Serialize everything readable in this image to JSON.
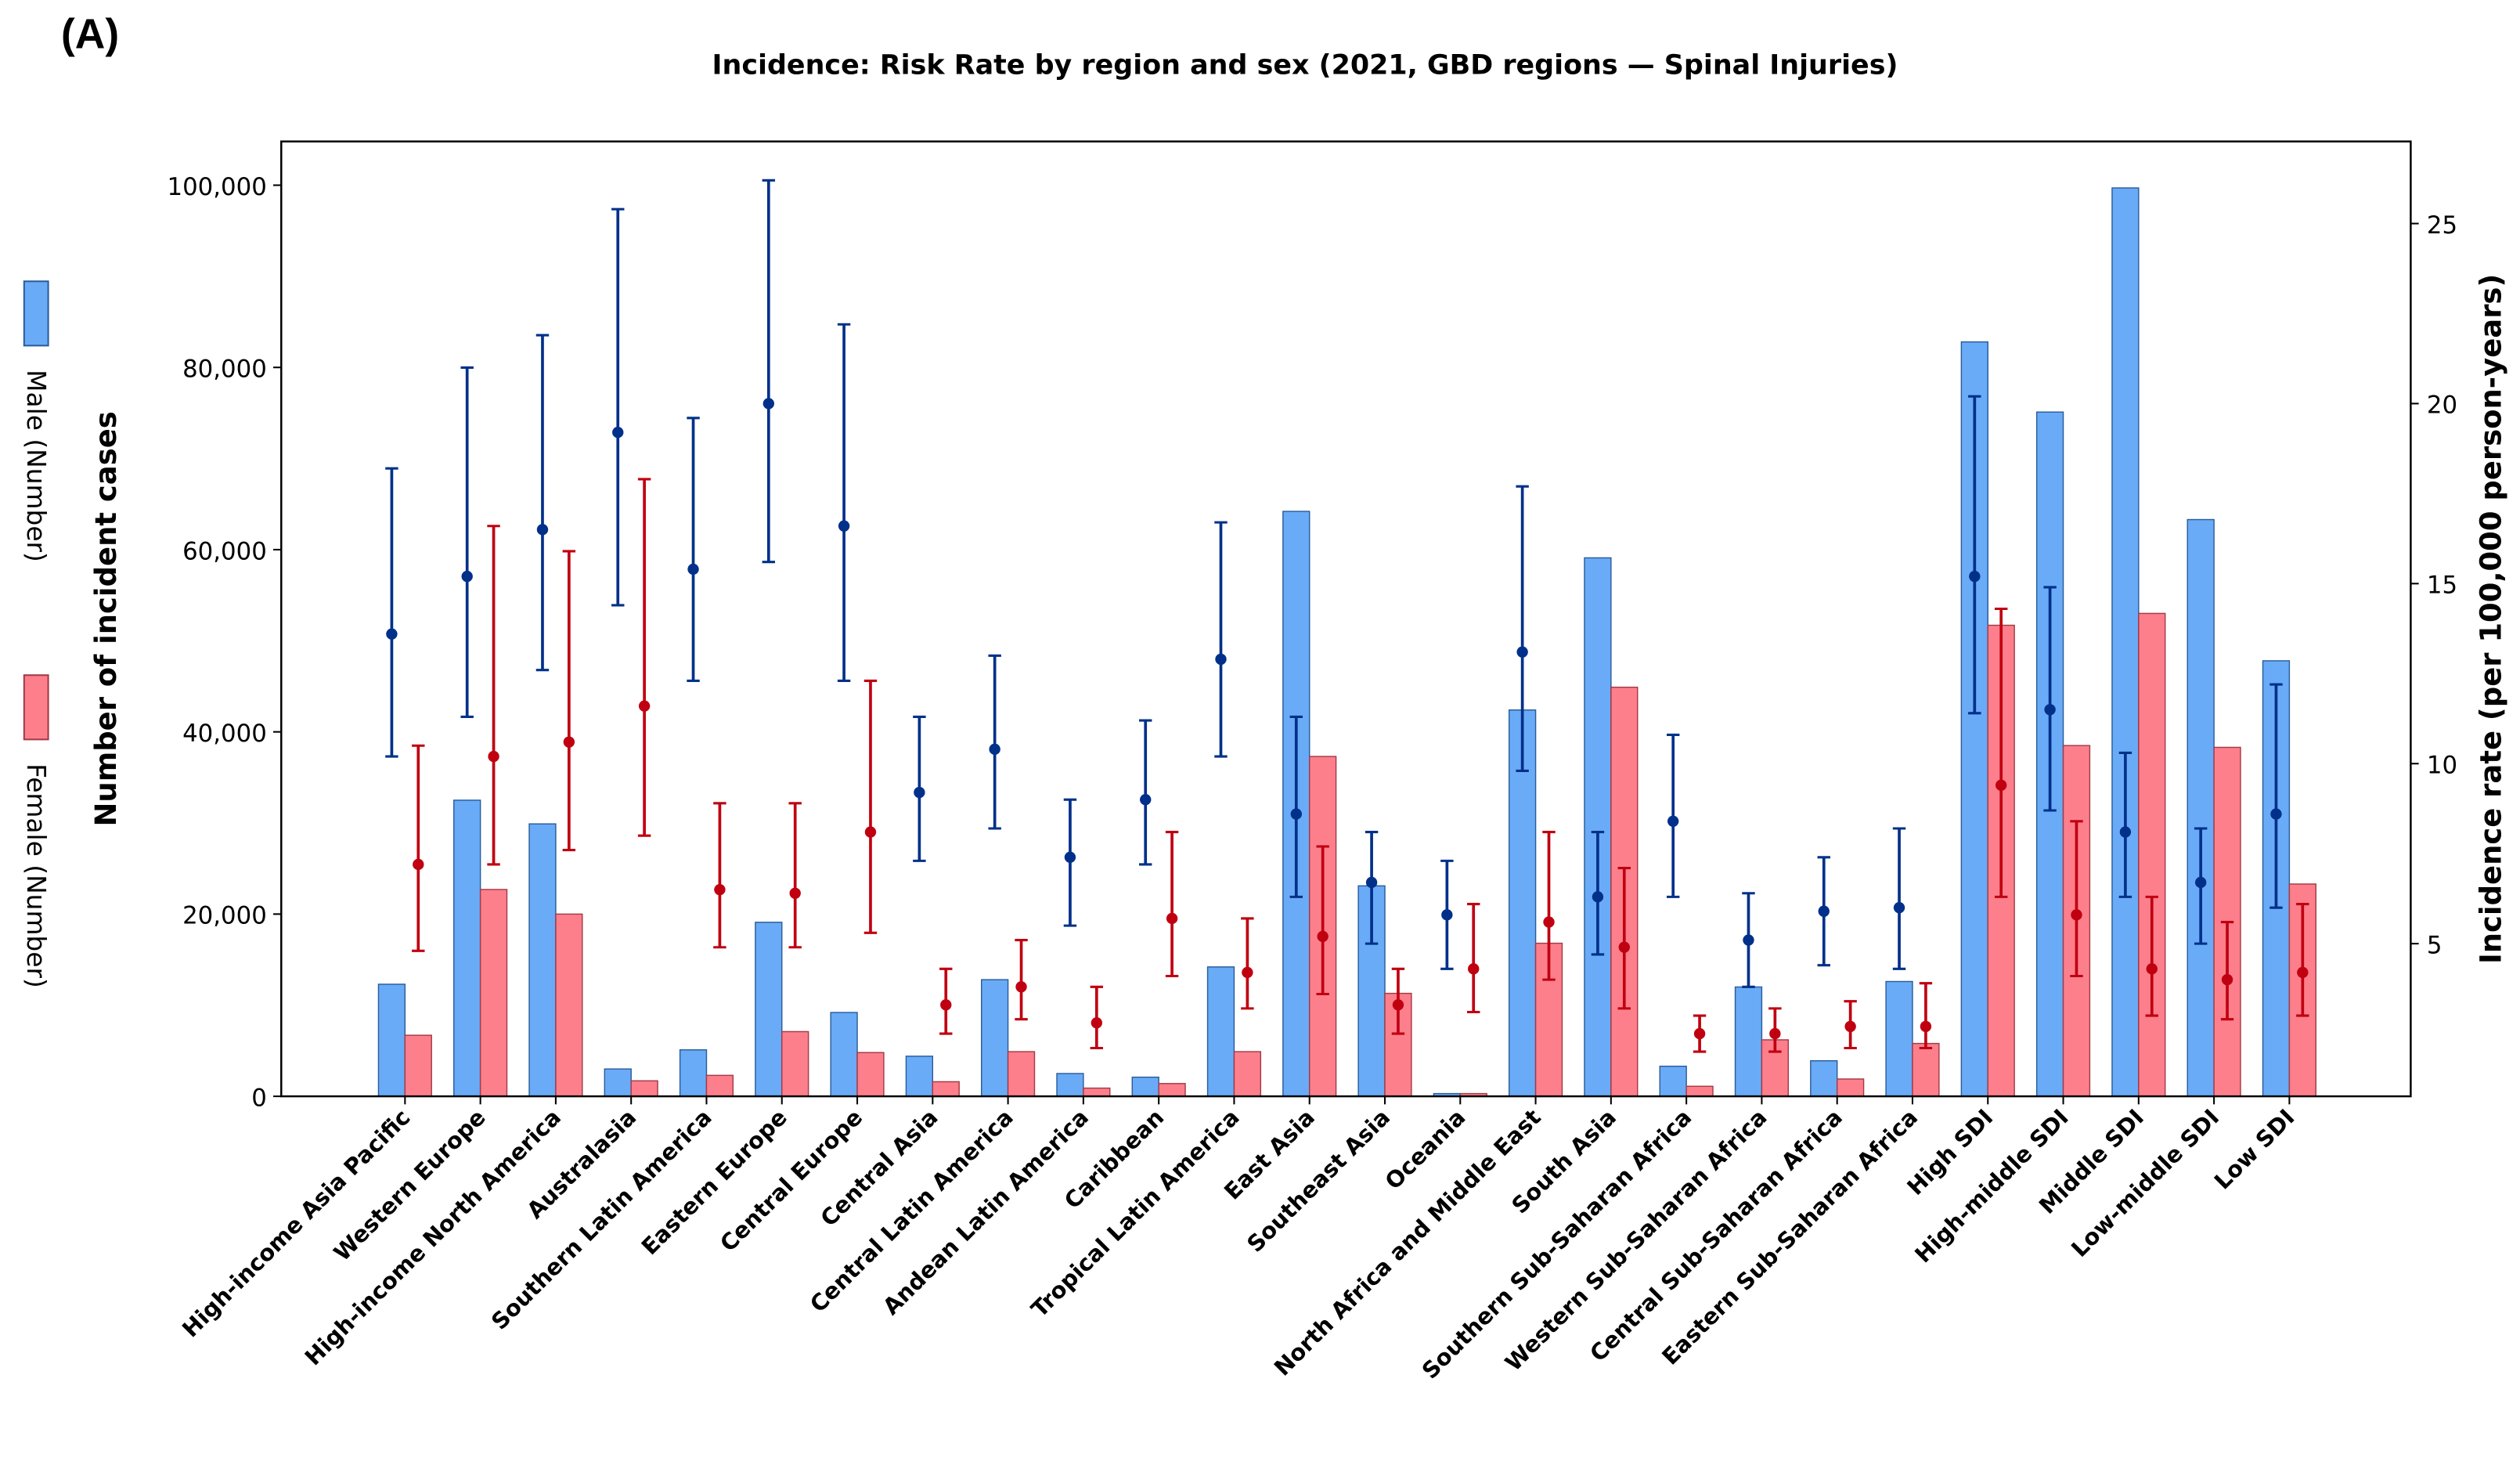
{
  "panel_label": "(A)",
  "chart_data": {
    "type": "bar",
    "title": "Incidence: Risk Rate by region and sex (2021, GBD regions — Spinal Injuries)",
    "ylabel": "Number of incident cases",
    "y2label": "Incidence rate (per 100,000 person-years)",
    "categories": [
      "High-income Asia Pacific",
      "Western Europe",
      "High-income North America",
      "Australasia",
      "Southern Latin America",
      "Eastern Europe",
      "Central Europe",
      "Central Asia",
      "Central Latin America",
      "Andean Latin America",
      "Caribbean",
      "Tropical Latin America",
      "East Asia",
      "Southeast Asia",
      "Oceania",
      "North Africa and Middle East",
      "South Asia",
      "Southern Sub-Saharan Africa",
      "Western Sub-Saharan Africa",
      "Central Sub-Saharan Africa",
      "Eastern Sub-Saharan Africa",
      "High SDI",
      "High-middle SDI",
      "Middle SDI",
      "Low-middle SDI",
      "Low SDI"
    ],
    "series": [
      {
        "name": "Male (Number)",
        "color": "#6aabf7",
        "values": [
          12300,
          32500,
          29900,
          3000,
          5100,
          19100,
          9200,
          4400,
          12800,
          2500,
          2100,
          14200,
          64200,
          23100,
          300,
          42400,
          59100,
          3300,
          12000,
          3900,
          12600,
          82800,
          75100,
          99700,
          63300,
          47800
        ]
      },
      {
        "name": "Female (Number)",
        "color": "#fd7f8c",
        "values": [
          6700,
          22700,
          20000,
          1700,
          2300,
          7100,
          4800,
          1600,
          4900,
          900,
          1400,
          4900,
          37300,
          11300,
          300,
          16800,
          44900,
          1100,
          6200,
          1900,
          5800,
          51700,
          38500,
          53000,
          38300,
          23300
        ]
      }
    ],
    "rates": [
      {
        "color": "#00308a",
        "axis": "y2",
        "values": [
          13.6,
          15.2,
          16.5,
          19.2,
          15.4,
          20.0,
          16.6,
          9.2,
          10.4,
          7.4,
          9.0,
          12.9,
          8.6,
          6.7,
          5.8,
          13.1,
          6.3,
          8.4,
          5.1,
          5.9,
          6.0,
          15.2,
          11.5,
          8.1,
          6.7,
          8.6
        ],
        "lower": [
          10.2,
          11.3,
          12.6,
          14.4,
          12.3,
          15.6,
          12.3,
          7.3,
          8.2,
          5.5,
          7.2,
          10.2,
          6.3,
          5.0,
          4.3,
          9.8,
          4.7,
          6.3,
          3.8,
          4.4,
          4.3,
          11.4,
          8.7,
          6.3,
          5.0,
          6.0
        ],
        "upper": [
          18.2,
          21.0,
          21.9,
          25.4,
          19.6,
          26.2,
          22.2,
          11.3,
          13.0,
          9.0,
          11.2,
          16.7,
          11.3,
          8.1,
          7.3,
          17.7,
          8.1,
          10.8,
          6.4,
          7.4,
          8.2,
          20.2,
          14.9,
          10.3,
          8.2,
          12.2
        ]
      },
      {
        "color": "#c00010",
        "axis": "y2",
        "values": [
          7.2,
          10.2,
          10.6,
          11.6,
          6.5,
          6.4,
          8.1,
          3.3,
          3.8,
          2.8,
          5.7,
          4.2,
          5.2,
          3.3,
          4.3,
          5.6,
          4.9,
          2.5,
          2.5,
          2.7,
          2.7,
          9.4,
          5.8,
          4.3,
          4.0,
          4.2
        ],
        "lower": [
          4.8,
          7.2,
          7.6,
          8.0,
          4.9,
          4.9,
          5.3,
          2.5,
          2.9,
          2.1,
          4.1,
          3.2,
          3.6,
          2.5,
          3.1,
          4.0,
          3.2,
          2.0,
          2.0,
          2.1,
          2.1,
          6.3,
          4.1,
          3.0,
          2.9,
          3.0
        ],
        "upper": [
          10.5,
          16.6,
          15.9,
          17.9,
          8.9,
          8.9,
          12.3,
          4.3,
          5.1,
          3.8,
          8.1,
          5.7,
          7.7,
          4.3,
          6.1,
          8.1,
          7.1,
          3.0,
          3.2,
          3.4,
          3.9,
          14.3,
          8.4,
          6.3,
          5.6,
          6.1
        ]
      }
    ],
    "ylim": [
      0,
      104800
    ],
    "yticks": [
      0,
      {
        "value": 20000,
        "label": "20,000"
      },
      {
        "value": 40000,
        "label": "40,000"
      },
      {
        "value": 60000,
        "label": "60,000"
      },
      {
        "value": 80000,
        "label": "80,000"
      },
      {
        "value": 100000,
        "label": "100,000"
      }
    ],
    "y2lim": [
      0.76,
      27.28
    ],
    "y2ticks": [
      5,
      10,
      15,
      20,
      25
    ]
  }
}
